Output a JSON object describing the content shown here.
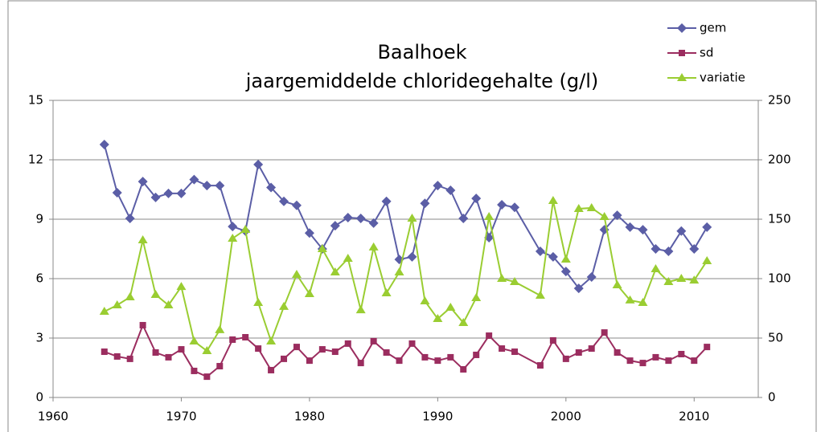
{
  "chart_data": {
    "type": "line",
    "title": "Baalhoek",
    "subtitle": "jaargemiddelde chloridegehalte (g/l)",
    "x": [
      1964,
      1965,
      1966,
      1967,
      1968,
      1969,
      1970,
      1971,
      1972,
      1973,
      1974,
      1975,
      1976,
      1977,
      1978,
      1979,
      1980,
      1981,
      1982,
      1983,
      1984,
      1985,
      1986,
      1987,
      1988,
      1989,
      1990,
      1991,
      1992,
      1993,
      1994,
      1995,
      1996,
      1998,
      1999,
      2000,
      2001,
      2002,
      2003,
      2004,
      2005,
      2006,
      2007,
      2008,
      2009,
      2010,
      2011
    ],
    "series": [
      {
        "name": "gem",
        "color": "#5b5ea6",
        "marker": "diamond",
        "values": [
          12.77,
          10.34,
          9.04,
          10.9,
          10.1,
          10.3,
          10.3,
          11.0,
          10.7,
          10.7,
          8.63,
          8.4,
          11.76,
          10.6,
          9.9,
          9.7,
          8.3,
          7.5,
          8.67,
          9.08,
          9.04,
          8.8,
          9.9,
          6.97,
          7.1,
          9.8,
          10.7,
          10.46,
          9.04,
          10.05,
          8.07,
          9.73,
          9.6,
          7.38,
          7.1,
          6.36,
          5.51,
          6.08,
          8.47,
          9.2,
          8.6,
          8.47,
          7.5,
          7.38,
          8.4,
          7.5,
          8.6
        ]
      },
      {
        "name": "sd",
        "color": "#9b2d5f",
        "marker": "square",
        "values": [
          2.31,
          2.07,
          1.95,
          3.65,
          2.27,
          2.03,
          2.43,
          1.34,
          1.05,
          1.58,
          2.92,
          3.04,
          2.47,
          1.38,
          1.95,
          2.55,
          1.86,
          2.43,
          2.31,
          2.72,
          1.74,
          2.84,
          2.27,
          1.86,
          2.72,
          2.03,
          1.86,
          2.03,
          1.42,
          2.15,
          3.12,
          2.47,
          2.31,
          1.62,
          2.88,
          1.95,
          2.27,
          2.47,
          3.28,
          2.27,
          1.86,
          1.74,
          2.03,
          1.86,
          2.19,
          1.86,
          2.55
        ]
      },
      {
        "name": "variatie",
        "color": "#9acd32",
        "marker": "triangle",
        "axis": "y2",
        "values": [
          72.3,
          77.7,
          84.5,
          132.4,
          86.5,
          77.7,
          93.2,
          47.3,
          39.2,
          56.8,
          133.8,
          141.2,
          79.7,
          47.3,
          76.4,
          103.4,
          87.2,
          125,
          105.4,
          116.9,
          73.6,
          126.4,
          87.8,
          105.4,
          150.7,
          81.1,
          66.2,
          75.7,
          62.8,
          83.8,
          152,
          100,
          97.3,
          85.8,
          165.5,
          116.2,
          158.8,
          159.5,
          152,
          94.6,
          81.8,
          79.7,
          108.1,
          97.3,
          100,
          98.6,
          114.9
        ]
      }
    ],
    "xlim": [
      1960,
      2015
    ],
    "xticks": [
      1960,
      1970,
      1980,
      1990,
      2000,
      2010
    ],
    "ylim": [
      0,
      15
    ],
    "yticks": [
      0,
      3,
      6,
      9,
      12,
      15
    ],
    "y2lim": [
      0,
      250
    ],
    "y2ticks": [
      0,
      50,
      100,
      150,
      200,
      250
    ],
    "grid": true,
    "legend": "top-right"
  }
}
